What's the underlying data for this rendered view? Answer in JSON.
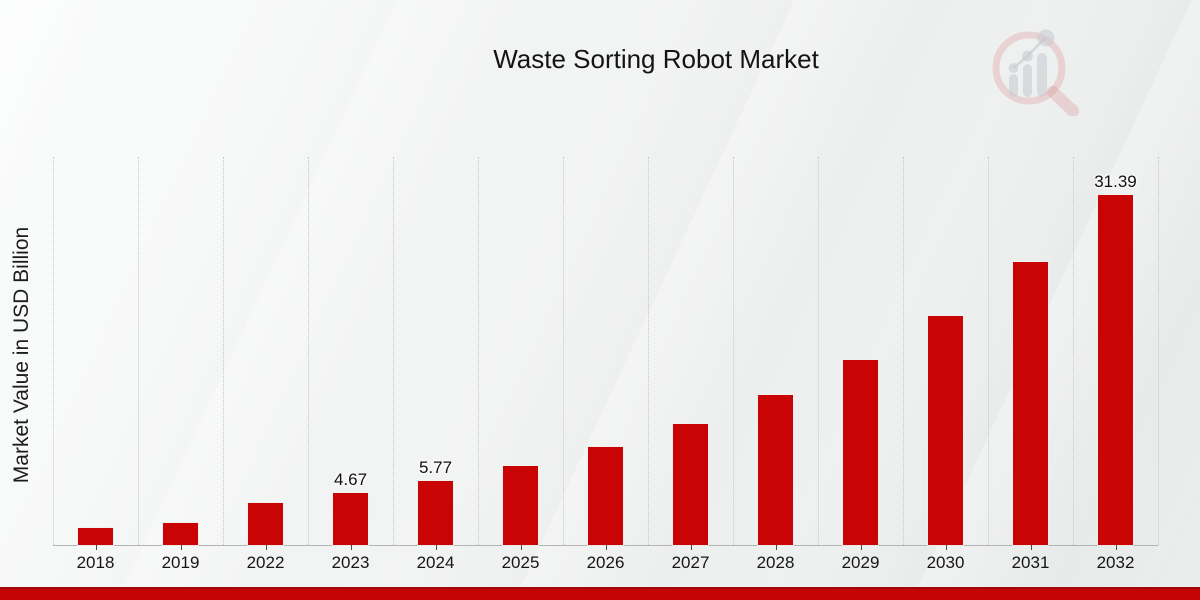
{
  "title": "Waste Sorting Robot Market",
  "y_axis_label": "Market Value in USD Billion",
  "logo": {
    "name": "magnifier-bar-chart-logo"
  },
  "chart_data": {
    "type": "bar",
    "title": "Waste Sorting Robot Market",
    "xlabel": "",
    "ylabel": "Market Value in USD Billion",
    "unit": "USD Billion",
    "categories": [
      "2018",
      "2019",
      "2022",
      "2023",
      "2024",
      "2025",
      "2026",
      "2027",
      "2028",
      "2029",
      "2030",
      "2031",
      "2032"
    ],
    "values": [
      1.5,
      2.0,
      3.78,
      4.67,
      5.77,
      7.13,
      8.81,
      10.89,
      13.45,
      16.62,
      20.54,
      25.38,
      31.39
    ],
    "data_labels": {
      "2023": "4.67",
      "2024": "5.77",
      "2032": "31.39"
    },
    "ylim": [
      0,
      34.9
    ],
    "grid": "vertical-dotted",
    "legend": "none",
    "bar_color": "#c80404"
  },
  "colors": {
    "bar": "#c80404",
    "footer_band": "#c50404",
    "footer_band_edge": "#9e0909",
    "grid": "#c7c7c7",
    "axis": "#b4b4b4",
    "text": "#1a1a1a",
    "background_top": "#fbfcfc",
    "background_bottom": "#e7e9e9"
  }
}
